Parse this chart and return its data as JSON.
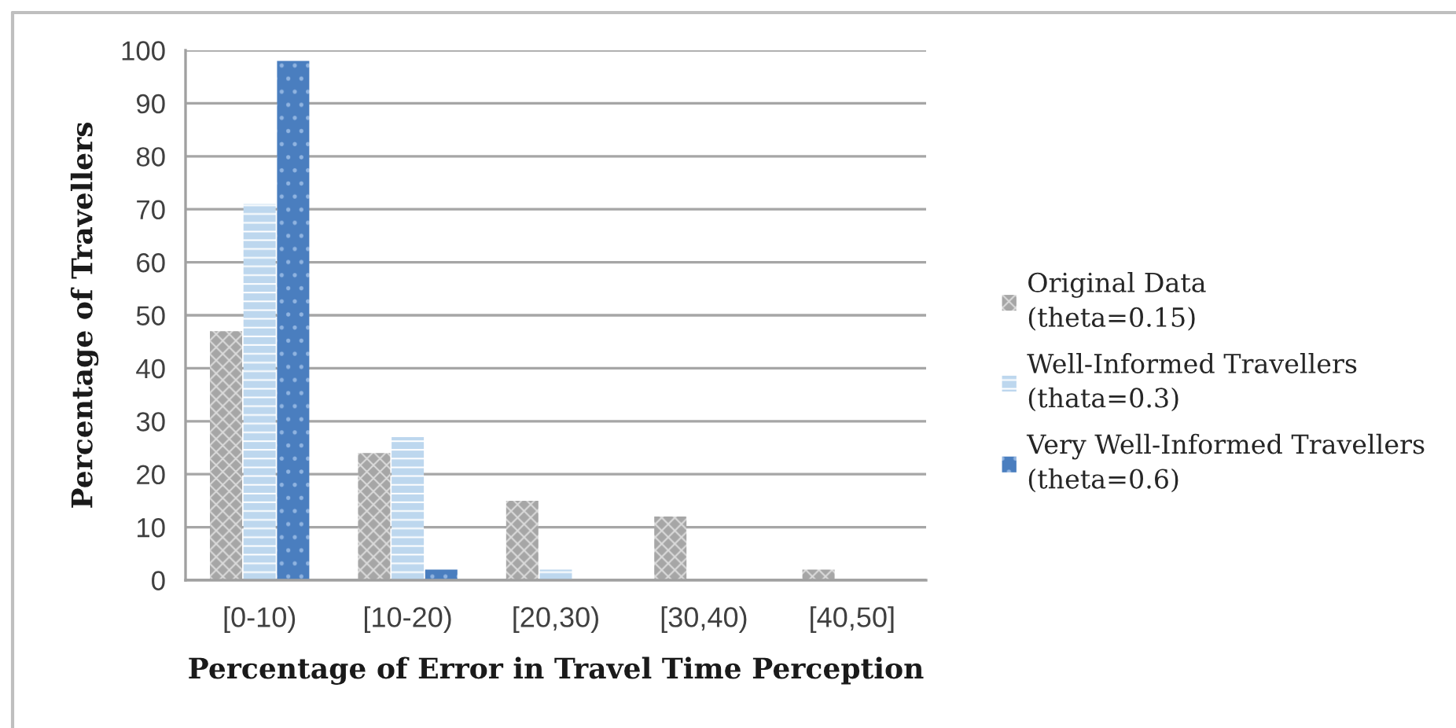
{
  "chart_data": {
    "type": "bar",
    "xlabel": "Percentage of Error in Travel Time Perception",
    "ylabel": "Percentage of Travellers",
    "categories": [
      "[0-10)",
      "[10-20)",
      "[20,30)",
      "[30,40)",
      "[40,50]"
    ],
    "series": [
      {
        "name": "Original Data\n(theta=0.15)",
        "color": "#a6a6a6",
        "values": [
          47,
          24,
          15,
          12,
          2
        ]
      },
      {
        "name": "Well-Informed Travellers\n(thata=0.3)",
        "color": "#bdd7ee",
        "values": [
          71,
          27,
          2,
          0,
          0
        ]
      },
      {
        "name": "Very Well-Informed Travellers\n(theta=0.6)",
        "color": "#4a7ebf",
        "values": [
          98,
          2,
          0,
          0,
          0
        ]
      }
    ],
    "ylim": [
      0,
      100
    ],
    "yticks": [
      0,
      10,
      20,
      30,
      40,
      50,
      60,
      70,
      80,
      90,
      100
    ],
    "grid": "y",
    "legend": "right"
  }
}
